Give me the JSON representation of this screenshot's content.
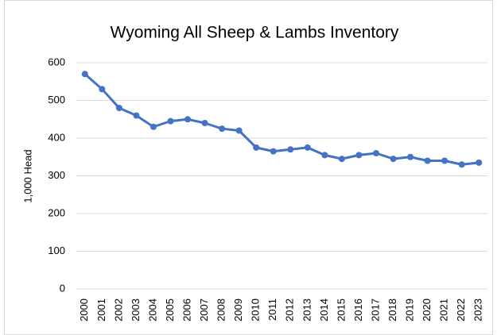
{
  "chart_data": {
    "type": "line",
    "title": "Wyoming All Sheep & Lambs Inventory",
    "y_label": "1,000 Head",
    "categories": [
      "2000",
      "2001",
      "2002",
      "2003",
      "2004",
      "2005",
      "2006",
      "2007",
      "2008",
      "2009",
      "2010",
      "2011",
      "2012",
      "2013",
      "2014",
      "2015",
      "2016",
      "2017",
      "2018",
      "2019",
      "2020",
      "2021",
      "2022",
      "2023"
    ],
    "series": [
      {
        "name": "Inventory",
        "color": "#4472c4",
        "values": [
          570,
          530,
          480,
          460,
          430,
          445,
          450,
          440,
          425,
          420,
          375,
          365,
          370,
          375,
          355,
          345,
          355,
          360,
          345,
          350,
          340,
          340,
          330,
          335
        ]
      }
    ],
    "ylim": [
      0,
      600
    ],
    "yticks": [
      0,
      100,
      200,
      300,
      400,
      500,
      600
    ],
    "grid": true
  }
}
